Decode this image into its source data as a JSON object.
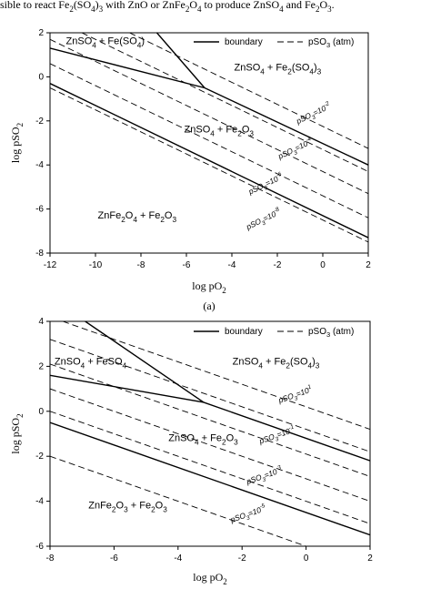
{
  "header_text": "sible to react Fe2(SO4)3 with ZnO or ZnFe2O4 to produce ZnSO4 and Fe2O3.",
  "chart_data": [
    {
      "type": "line",
      "caption": "(a)",
      "xlabel": "log pO2",
      "ylabel": "log pSO2",
      "xlim": [
        -12,
        2
      ],
      "ylim": [
        -8,
        2
      ],
      "xticks": [
        -12,
        -10,
        -8,
        -6,
        -4,
        -2,
        0,
        2
      ],
      "yticks": [
        -8,
        -6,
        -4,
        -2,
        0,
        2
      ],
      "series": [
        {
          "name": "boundary",
          "color": "#000000",
          "dashed": false,
          "lines": [
            {
              "x": [
                -12,
                -5.2,
                2
              ],
              "values": [
                1.3,
                -0.5,
                -4
              ]
            },
            {
              "x": [
                -7.3,
                -5.2
              ],
              "values": [
                2,
                -0.5
              ]
            },
            {
              "x": [
                -12,
                2
              ],
              "values": [
                -0.3,
                -7.3
              ]
            }
          ]
        },
        {
          "name": "pSO3 (atm)",
          "color": "#000000",
          "dashed": true,
          "lines": [
            {
              "x": [
                -8.5,
                2
              ],
              "values": [
                2,
                -3.25
              ]
            },
            {
              "x": [
                -10.6,
                2
              ],
              "values": [
                2,
                -4.3
              ]
            },
            {
              "x": [
                -12,
                2
              ],
              "values": [
                1.7,
                -5.3
              ]
            },
            {
              "x": [
                -12,
                2
              ],
              "values": [
                0.6,
                -6.4
              ]
            },
            {
              "x": [
                -12,
                2
              ],
              "values": [
                -0.5,
                -7.5
              ]
            }
          ]
        }
      ],
      "annotations": [
        "ZnSO4 + Fe(SO4)",
        "ZnSO4 + Fe2(SO4)3",
        "ZnSO4 + Fe2O3",
        "ZnFe2O4 + Fe2O3",
        "pSO3=10-2",
        "pSO3=10-4",
        "pSO3=10-6",
        "pSO3=10-8"
      ]
    },
    {
      "type": "line",
      "xlabel": "log pO2",
      "ylabel": "log pSO2",
      "xlim": [
        -8,
        2
      ],
      "ylim": [
        -6,
        4
      ],
      "xticks": [
        -8,
        -6,
        -4,
        -2,
        0,
        2
      ],
      "yticks": [
        -6,
        -4,
        -2,
        0,
        2,
        4
      ],
      "series": [
        {
          "name": "boundary",
          "color": "#000000",
          "dashed": false,
          "lines": [
            {
              "x": [
                -8,
                -3.2,
                2
              ],
              "values": [
                1.6,
                0.4,
                -2.2
              ]
            },
            {
              "x": [
                -6.9,
                -3.2
              ],
              "values": [
                4,
                0.4
              ]
            },
            {
              "x": [
                -8,
                2
              ],
              "values": [
                -0.5,
                -5.5
              ]
            }
          ]
        },
        {
          "name": "pSO3 (atm)",
          "color": "#000000",
          "dashed": true,
          "lines": [
            {
              "x": [
                -7.6,
                2
              ],
              "values": [
                4,
                -0.8
              ]
            },
            {
              "x": [
                -8,
                2
              ],
              "values": [
                3.2,
                -1.8
              ]
            },
            {
              "x": [
                -8,
                2
              ],
              "values": [
                2.1,
                -2.9
              ]
            },
            {
              "x": [
                -8,
                2
              ],
              "values": [
                1,
                -4
              ]
            },
            {
              "x": [
                -8,
                2
              ],
              "values": [
                0,
                -5
              ]
            },
            {
              "x": [
                -8,
                0
              ],
              "values": [
                -2,
                -6
              ]
            }
          ]
        }
      ],
      "annotations": [
        "ZnSO4 + FeSO4",
        "ZnSO4 + Fe2(SO4)3",
        "ZnSO4 + Fe2O3",
        "ZnFe2O3 + Fe2O3",
        "pSO3=101",
        "pSO3=10-1",
        "pSO3=10-3",
        "pSO3=10-5"
      ]
    }
  ]
}
